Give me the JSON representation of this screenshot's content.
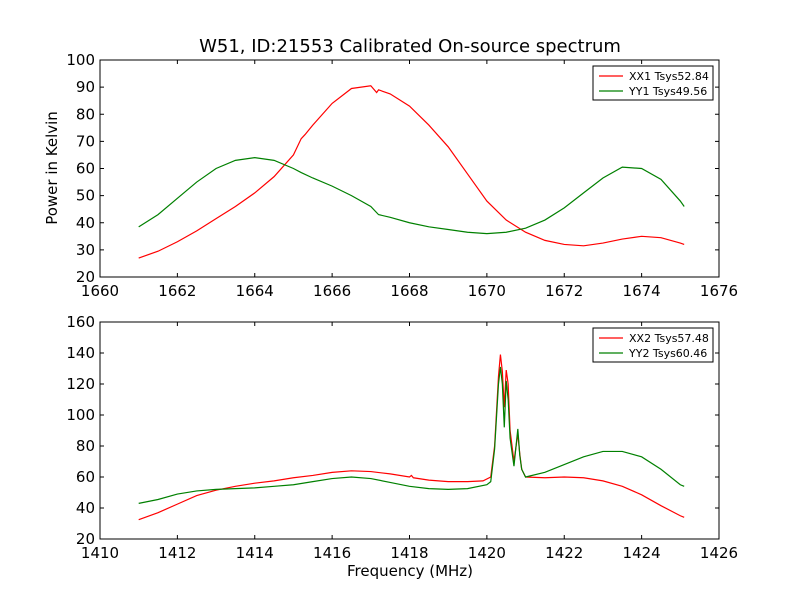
{
  "chart_data": [
    {
      "type": "line",
      "title": "W51, ID:21553 Calibrated On-source spectrum",
      "xlabel": "",
      "ylabel": "Power in Kelvin",
      "xlim": [
        1660,
        1676
      ],
      "ylim": [
        20,
        100
      ],
      "xticks": [
        1660,
        1662,
        1664,
        1666,
        1668,
        1670,
        1672,
        1674,
        1676
      ],
      "yticks": [
        20,
        30,
        40,
        50,
        60,
        70,
        80,
        90,
        100
      ],
      "legend_position": "top-right",
      "grid": false,
      "series": [
        {
          "name": "XX1 Tsys52.84",
          "color": "#ff0000",
          "points": [
            [
              1661.0,
              27
            ],
            [
              1661.5,
              29.5
            ],
            [
              1662.0,
              33
            ],
            [
              1662.5,
              37
            ],
            [
              1663.0,
              41.5
            ],
            [
              1663.5,
              46
            ],
            [
              1664.0,
              51
            ],
            [
              1664.5,
              57
            ],
            [
              1665.0,
              65
            ],
            [
              1665.2,
              71
            ],
            [
              1665.3,
              72.5
            ],
            [
              1665.5,
              76
            ],
            [
              1666.0,
              84
            ],
            [
              1666.5,
              89.5
            ],
            [
              1667.0,
              90.5
            ],
            [
              1667.15,
              88
            ],
            [
              1667.2,
              89
            ],
            [
              1667.5,
              87.5
            ],
            [
              1668.0,
              83
            ],
            [
              1668.5,
              76
            ],
            [
              1669.0,
              68
            ],
            [
              1669.5,
              58
            ],
            [
              1670.0,
              48
            ],
            [
              1670.5,
              41
            ],
            [
              1671.0,
              36.5
            ],
            [
              1671.5,
              33.5
            ],
            [
              1672.0,
              32
            ],
            [
              1672.5,
              31.5
            ],
            [
              1673.0,
              32.5
            ],
            [
              1673.5,
              34
            ],
            [
              1674.0,
              35
            ],
            [
              1674.5,
              34.5
            ],
            [
              1675.0,
              32.5
            ],
            [
              1675.1,
              32
            ]
          ]
        },
        {
          "name": "YY1 Tsys49.56",
          "color": "#008000",
          "points": [
            [
              1661.0,
              38.5
            ],
            [
              1661.5,
              43
            ],
            [
              1662.0,
              49
            ],
            [
              1662.5,
              55
            ],
            [
              1663.0,
              60
            ],
            [
              1663.5,
              63
            ],
            [
              1664.0,
              64
            ],
            [
              1664.5,
              63
            ],
            [
              1665.0,
              60
            ],
            [
              1665.2,
              58.5
            ],
            [
              1665.5,
              56.5
            ],
            [
              1666.0,
              53.5
            ],
            [
              1666.5,
              50
            ],
            [
              1667.0,
              46
            ],
            [
              1667.2,
              43
            ],
            [
              1667.5,
              42
            ],
            [
              1668.0,
              40
            ],
            [
              1668.5,
              38.5
            ],
            [
              1669.0,
              37.5
            ],
            [
              1669.5,
              36.5
            ],
            [
              1670.0,
              36
            ],
            [
              1670.5,
              36.5
            ],
            [
              1671.0,
              38
            ],
            [
              1671.5,
              41
            ],
            [
              1672.0,
              45.5
            ],
            [
              1672.5,
              51
            ],
            [
              1673.0,
              56.5
            ],
            [
              1673.5,
              60.5
            ],
            [
              1674.0,
              60
            ],
            [
              1674.5,
              56
            ],
            [
              1675.0,
              48
            ],
            [
              1675.1,
              46
            ]
          ]
        }
      ]
    },
    {
      "type": "line",
      "title": "",
      "xlabel": "Frequency (MHz)",
      "ylabel": "",
      "xlim": [
        1410,
        1426
      ],
      "ylim": [
        20,
        160
      ],
      "xticks": [
        1410,
        1412,
        1414,
        1416,
        1418,
        1420,
        1422,
        1424,
        1426
      ],
      "yticks": [
        20,
        40,
        60,
        80,
        100,
        120,
        140,
        160
      ],
      "legend_position": "top-right",
      "grid": false,
      "series": [
        {
          "name": "XX2 Tsys57.48",
          "color": "#ff0000",
          "points": [
            [
              1411.0,
              32.5
            ],
            [
              1411.5,
              37
            ],
            [
              1412.0,
              42.5
            ],
            [
              1412.5,
              48
            ],
            [
              1413.0,
              51.5
            ],
            [
              1413.5,
              54
            ],
            [
              1414.0,
              56
            ],
            [
              1414.5,
              57.5
            ],
            [
              1415.0,
              59.5
            ],
            [
              1415.5,
              61
            ],
            [
              1416.0,
              63
            ],
            [
              1416.5,
              64
            ],
            [
              1417.0,
              63.5
            ],
            [
              1417.5,
              62
            ],
            [
              1418.0,
              60
            ],
            [
              1418.05,
              61
            ],
            [
              1418.1,
              59.5
            ],
            [
              1418.5,
              58
            ],
            [
              1419.0,
              57
            ],
            [
              1419.5,
              57
            ],
            [
              1419.9,
              57.5
            ],
            [
              1420.1,
              60
            ],
            [
              1420.2,
              80
            ],
            [
              1420.3,
              125
            ],
            [
              1420.35,
              139
            ],
            [
              1420.4,
              128
            ],
            [
              1420.45,
              105
            ],
            [
              1420.5,
              129
            ],
            [
              1420.55,
              120
            ],
            [
              1420.6,
              90
            ],
            [
              1420.7,
              70
            ],
            [
              1420.8,
              88
            ],
            [
              1420.85,
              75
            ],
            [
              1420.9,
              65
            ],
            [
              1421.0,
              60
            ],
            [
              1421.5,
              59.5
            ],
            [
              1422.0,
              60
            ],
            [
              1422.5,
              59.5
            ],
            [
              1423.0,
              57.5
            ],
            [
              1423.5,
              54
            ],
            [
              1424.0,
              48.5
            ],
            [
              1424.5,
              41.5
            ],
            [
              1425.0,
              35
            ],
            [
              1425.1,
              34
            ]
          ]
        },
        {
          "name": "YY2 Tsys60.46",
          "color": "#008000",
          "points": [
            [
              1411.0,
              43
            ],
            [
              1411.5,
              45.5
            ],
            [
              1412.0,
              49
            ],
            [
              1412.5,
              51
            ],
            [
              1413.0,
              52
            ],
            [
              1413.5,
              52.5
            ],
            [
              1414.0,
              53
            ],
            [
              1414.5,
              54
            ],
            [
              1415.0,
              55
            ],
            [
              1415.5,
              57
            ],
            [
              1416.0,
              59
            ],
            [
              1416.5,
              60
            ],
            [
              1417.0,
              59
            ],
            [
              1417.5,
              56.5
            ],
            [
              1418.0,
              54
            ],
            [
              1418.5,
              52.5
            ],
            [
              1419.0,
              52
            ],
            [
              1419.5,
              52.5
            ],
            [
              1420.0,
              55
            ],
            [
              1420.1,
              57
            ],
            [
              1420.2,
              78
            ],
            [
              1420.3,
              120
            ],
            [
              1420.35,
              131
            ],
            [
              1420.4,
              120
            ],
            [
              1420.45,
              92
            ],
            [
              1420.5,
              122
            ],
            [
              1420.55,
              110
            ],
            [
              1420.6,
              85
            ],
            [
              1420.7,
              67
            ],
            [
              1420.8,
              91
            ],
            [
              1420.85,
              74
            ],
            [
              1420.9,
              65
            ],
            [
              1421.0,
              60
            ],
            [
              1421.5,
              63
            ],
            [
              1422.0,
              68
            ],
            [
              1422.5,
              73
            ],
            [
              1423.0,
              76.5
            ],
            [
              1423.5,
              76.5
            ],
            [
              1424.0,
              73
            ],
            [
              1424.5,
              65
            ],
            [
              1425.0,
              55
            ],
            [
              1425.1,
              54
            ]
          ]
        }
      ]
    }
  ]
}
